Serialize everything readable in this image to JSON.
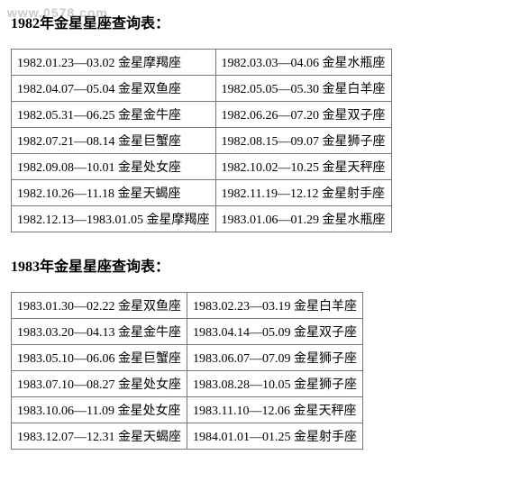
{
  "watermark": "www.0578.com",
  "table1982": {
    "title": "1982年金星星座查询表：",
    "rows": [
      [
        "1982.01.23—03.02 金星摩羯座",
        "1982.03.03—04.06 金星水瓶座"
      ],
      [
        "1982.04.07—05.04 金星双鱼座",
        "1982.05.05—05.30 金星白羊座"
      ],
      [
        "1982.05.31—06.25 金星金牛座",
        "1982.06.26—07.20 金星双子座"
      ],
      [
        "1982.07.21—08.14 金星巨蟹座",
        "1982.08.15—09.07 金星狮子座"
      ],
      [
        "1982.09.08—10.01 金星处女座",
        "1982.10.02—10.25 金星天秤座"
      ],
      [
        "1982.10.26—11.18 金星天蝎座",
        "1982.11.19—12.12 金星射手座"
      ],
      [
        "1982.12.13—1983.01.05 金星摩羯座",
        "1983.01.06—01.29 金星水瓶座"
      ]
    ]
  },
  "table1983": {
    "title": "1983年金星星座查询表：",
    "rows": [
      [
        "1983.01.30—02.22 金星双鱼座",
        "1983.02.23—03.19 金星白羊座"
      ],
      [
        "1983.03.20—04.13 金星金牛座",
        "1983.04.14—05.09 金星双子座"
      ],
      [
        "1983.05.10—06.06 金星巨蟹座",
        "1983.06.07—07.09 金星狮子座"
      ],
      [
        "1983.07.10—08.27 金星处女座",
        "1983.08.28—10.05 金星狮子座"
      ],
      [
        "1983.10.06—11.09 金星处女座",
        "1983.11.10—12.06 金星天秤座"
      ],
      [
        "1983.12.07—12.31 金星天蝎座",
        "1984.01.01—01.25 金星射手座"
      ]
    ]
  }
}
